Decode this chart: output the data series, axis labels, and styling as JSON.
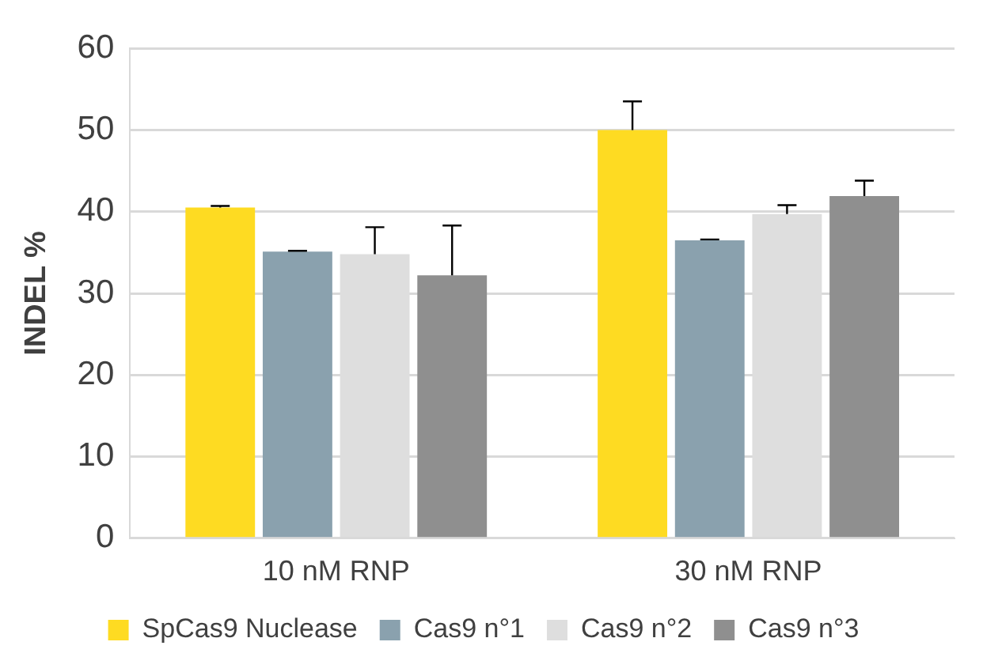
{
  "chart_data": {
    "type": "bar",
    "ylabel": "INDEL %",
    "categories": [
      "10 nM RNP",
      "30 nM RNP"
    ],
    "series": [
      {
        "name": "SpCas9 Nuclease",
        "color": "#fedb22",
        "values": [
          40.5,
          50.0
        ],
        "errors": [
          [
            40.5,
            40.7
          ],
          [
            50.0,
            53.5
          ]
        ]
      },
      {
        "name": "Cas9 n°1",
        "color": "#8aa1ae",
        "values": [
          35.1,
          36.5
        ],
        "errors": [
          [
            35.1,
            35.2
          ],
          [
            36.5,
            36.6
          ]
        ]
      },
      {
        "name": "Cas9 n°2",
        "color": "#dedede",
        "values": [
          34.8,
          39.7
        ],
        "errors": [
          [
            34.8,
            38.1
          ],
          [
            39.7,
            40.8
          ]
        ]
      },
      {
        "name": "Cas9 n°3",
        "color": "#8f8f8f",
        "values": [
          32.2,
          41.9
        ],
        "errors": [
          [
            32.2,
            38.3
          ],
          [
            41.9,
            43.8
          ]
        ]
      }
    ],
    "ylim": [
      0,
      60
    ],
    "yticks": [
      0,
      10,
      20,
      30,
      40,
      50,
      60
    ],
    "grid": "y",
    "legend": "bottom"
  }
}
